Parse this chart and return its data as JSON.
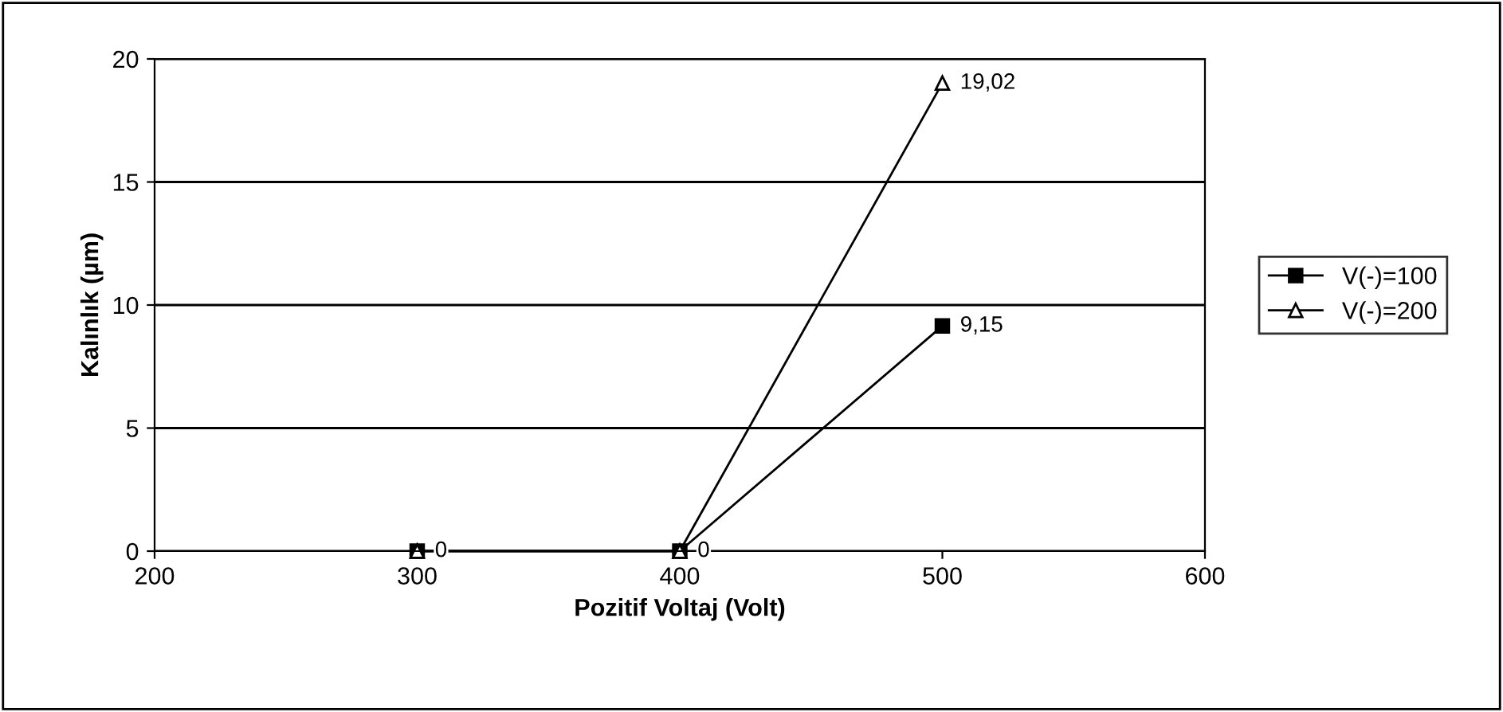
{
  "chart_data": {
    "type": "line",
    "xlabel": "Pozitif Voltaj (Volt)",
    "ylabel": "Kalınlık (µm)",
    "x": [
      300,
      400,
      500
    ],
    "series": [
      {
        "name": "V(-)=100",
        "color": "#000000",
        "marker": "square",
        "values": [
          0,
          0,
          9.15
        ],
        "value_labels": [
          "0",
          "0",
          "9,15"
        ]
      },
      {
        "name": "V(-)=200",
        "color": "#000000",
        "marker": "triangle",
        "values": [
          0,
          0,
          19.02
        ],
        "value_labels": [
          null,
          null,
          "19,02"
        ]
      }
    ],
    "xlim": [
      200,
      600
    ],
    "xticks": [
      200,
      300,
      400,
      500,
      600
    ],
    "ylim": [
      0,
      20
    ],
    "yticks": [
      0,
      5,
      10,
      15,
      20
    ],
    "grid": "y",
    "legend": "right",
    "line_style": "solid"
  }
}
